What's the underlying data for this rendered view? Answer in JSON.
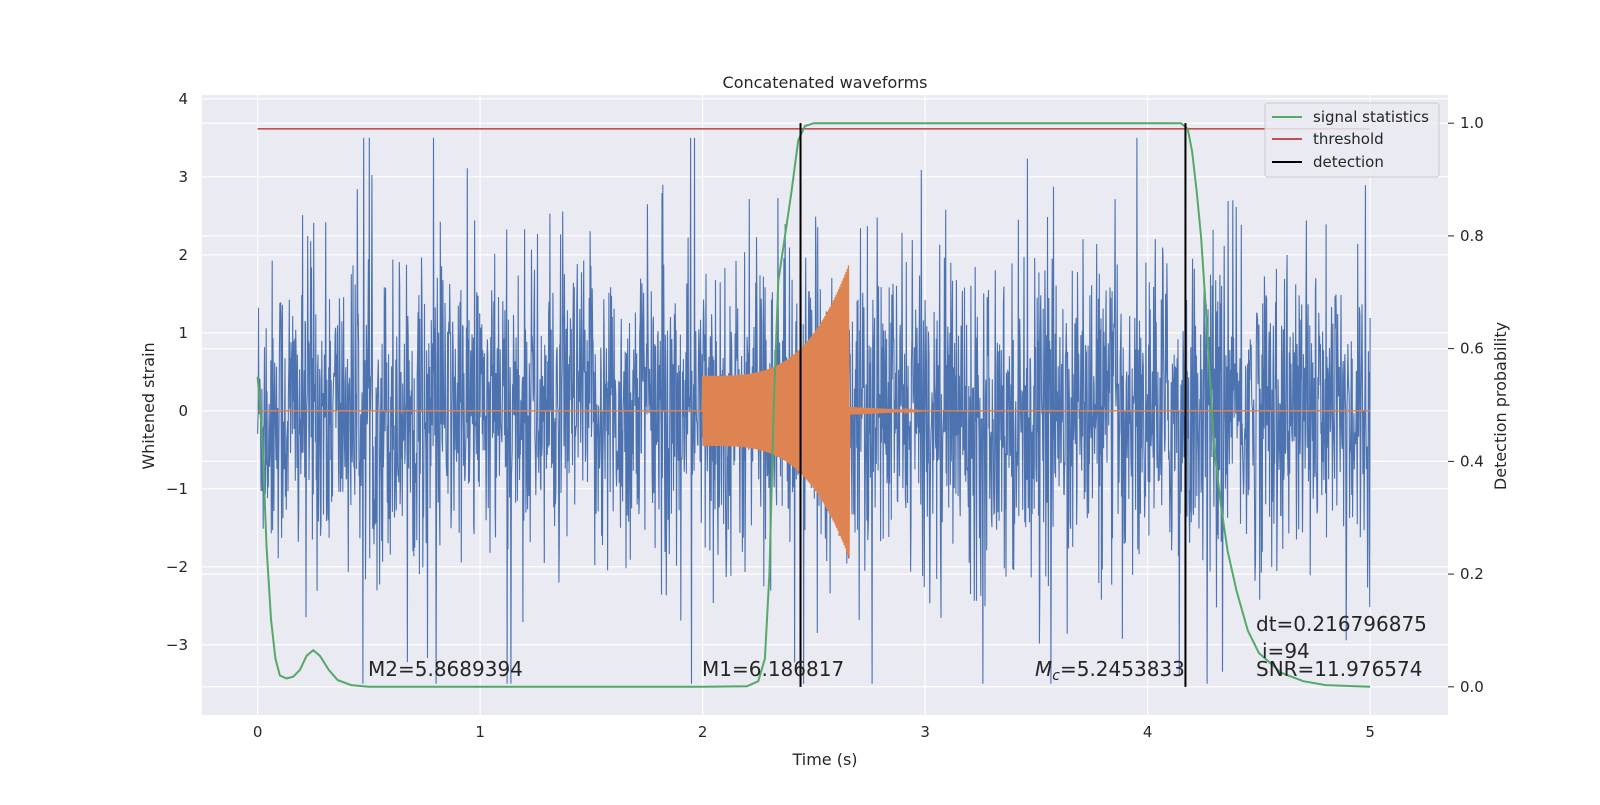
{
  "chart_data": {
    "type": "line",
    "title": "Concatenated waveforms",
    "xlabel": "Time (s)",
    "ylabel_left": "Whitened strain",
    "ylabel_right": "Detection probability",
    "xlim": [
      -0.25,
      5.35
    ],
    "ylim_left": [
      -3.9,
      4.05
    ],
    "ylim_right": [
      -0.05,
      1.05
    ],
    "x_ticks": [
      "0",
      "1",
      "2",
      "3",
      "4",
      "5"
    ],
    "y_ticks_left": [
      "4",
      "3",
      "2",
      "1",
      "0",
      "−1",
      "−2",
      "−3"
    ],
    "y_ticks_right": [
      "1.0",
      "0.8",
      "0.6",
      "0.4",
      "0.2",
      "0.0"
    ],
    "grid": true,
    "legend_position": "top-right",
    "series": [
      {
        "name": "",
        "axis": "left",
        "color": "#4c72b0",
        "description_kind": "noise",
        "x_range": [
          0,
          5
        ],
        "approx_amplitude": 3.5
      },
      {
        "name": "",
        "axis": "left",
        "color": "#dd8452",
        "kind": "chirp",
        "x_range": [
          0,
          5
        ],
        "chirp_start": 2.0,
        "merger": 2.66,
        "amplitude_start": 0.45,
        "amplitude_peak": 1.9
      },
      {
        "name": "signal statistics",
        "axis": "right",
        "color": "#55a868",
        "points": [
          [
            0,
            0.55
          ],
          [
            0.02,
            0.45
          ],
          [
            0.04,
            0.25
          ],
          [
            0.06,
            0.12
          ],
          [
            0.08,
            0.05
          ],
          [
            0.1,
            0.02
          ],
          [
            0.13,
            0.015
          ],
          [
            0.16,
            0.018
          ],
          [
            0.19,
            0.03
          ],
          [
            0.22,
            0.055
          ],
          [
            0.25,
            0.065
          ],
          [
            0.28,
            0.055
          ],
          [
            0.32,
            0.03
          ],
          [
            0.36,
            0.012
          ],
          [
            0.42,
            0.003
          ],
          [
            0.5,
            0.0
          ],
          [
            1.0,
            0.0
          ],
          [
            1.5,
            0.0
          ],
          [
            2.0,
            0.0
          ],
          [
            2.2,
            0.001
          ],
          [
            2.25,
            0.01
          ],
          [
            2.28,
            0.05
          ],
          [
            2.3,
            0.2
          ],
          [
            2.32,
            0.5
          ],
          [
            2.34,
            0.72
          ],
          [
            2.37,
            0.8
          ],
          [
            2.4,
            0.88
          ],
          [
            2.43,
            0.97
          ],
          [
            2.46,
            0.995
          ],
          [
            2.5,
            1.0
          ],
          [
            3.0,
            1.0
          ],
          [
            3.5,
            1.0
          ],
          [
            4.0,
            1.0
          ],
          [
            4.15,
            1.0
          ],
          [
            4.18,
            0.99
          ],
          [
            4.2,
            0.95
          ],
          [
            4.22,
            0.88
          ],
          [
            4.24,
            0.8
          ],
          [
            4.26,
            0.68
          ],
          [
            4.28,
            0.55
          ],
          [
            4.3,
            0.42
          ],
          [
            4.33,
            0.32
          ],
          [
            4.36,
            0.24
          ],
          [
            4.4,
            0.17
          ],
          [
            4.45,
            0.1
          ],
          [
            4.5,
            0.06
          ],
          [
            4.6,
            0.025
          ],
          [
            4.7,
            0.01
          ],
          [
            4.8,
            0.003
          ],
          [
            5.0,
            0.0
          ]
        ]
      },
      {
        "name": "threshold",
        "axis": "right",
        "color": "#c44e52",
        "value": 0.99,
        "x_range": [
          0,
          5
        ]
      },
      {
        "name": "detection",
        "axis": "right",
        "color": "#000000",
        "x_values": [
          2.44,
          4.17
        ],
        "y_range": [
          0.0,
          1.0
        ]
      }
    ],
    "annotations": {
      "m2": "M2=5.8689394",
      "m1": "M1=6.186817",
      "mc_symbol": "M",
      "mc_sub": "c",
      "mc_value": "=5.2453833",
      "dt": "dt=0.216796875",
      "i": "i=94",
      "snr": "SNR=11.976574"
    }
  }
}
